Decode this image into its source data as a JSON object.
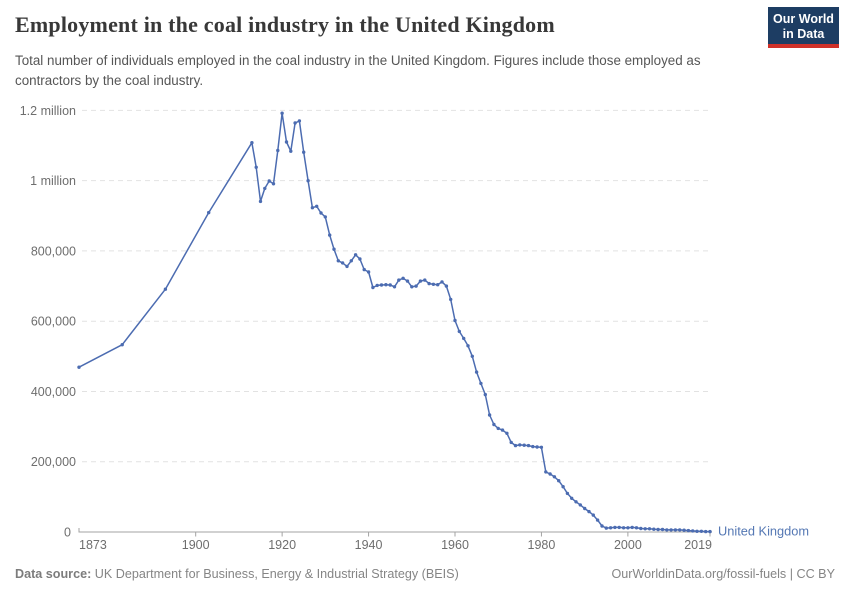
{
  "header": {
    "title": "Employment in the coal industry in the United Kingdom",
    "subtitle": "Total number of individuals employed in the coal industry in the United Kingdom. Figures include those employed as contractors by the coal industry.",
    "logo": {
      "line1": "Our World",
      "line2": "in Data",
      "bg_color": "#1d3d63",
      "accent_color": "#cf3129"
    }
  },
  "footer": {
    "source_label": "Data source:",
    "source_text": " UK Department for Business, Energy & Industrial Strategy (BEIS)",
    "right_text": "OurWorldinData.org/fossil-fuels | CC BY"
  },
  "chart_data": {
    "type": "line",
    "title": "Employment in the coal industry in the United Kingdom",
    "subtitle": "Total number of individuals employed in the coal industry in the United Kingdom. Figures include those employed as contractors by the coal industry.",
    "entity_label": "United Kingdom",
    "line_color": "#4c6cb1",
    "entity_label_color": "#5578b4",
    "grid_color": "#e2e2e2",
    "axis_color": "#a3a3a3",
    "tick_label_color": "#6e6e6e",
    "grid": "horizontal-dashed",
    "legend_position": "end-of-line",
    "x_range": [
      1873,
      2019
    ],
    "y_range": [
      0,
      1200000
    ],
    "x_ticks": [
      1873,
      1900,
      1920,
      1940,
      1960,
      1980,
      2000,
      2019
    ],
    "y_ticks": [
      {
        "value": 0,
        "label": "0"
      },
      {
        "value": 200000,
        "label": "200,000"
      },
      {
        "value": 400000,
        "label": "400,000"
      },
      {
        "value": 600000,
        "label": "600,000"
      },
      {
        "value": 800000,
        "label": "800,000"
      },
      {
        "value": 1000000,
        "label": "1 million"
      },
      {
        "value": 1200000,
        "label": "1.2 million"
      }
    ],
    "series": [
      {
        "name": "United Kingdom",
        "points": [
          [
            1873,
            469000
          ],
          [
            1883,
            533000
          ],
          [
            1893,
            691000
          ],
          [
            1903,
            909000
          ],
          [
            1913,
            1108000
          ],
          [
            1914,
            1038000
          ],
          [
            1915,
            941000
          ],
          [
            1916,
            978000
          ],
          [
            1917,
            999000
          ],
          [
            1918,
            991000
          ],
          [
            1919,
            1086000
          ],
          [
            1920,
            1192000
          ],
          [
            1921,
            1110000
          ],
          [
            1922,
            1084000
          ],
          [
            1923,
            1164000
          ],
          [
            1924,
            1170000
          ],
          [
            1925,
            1081000
          ],
          [
            1926,
            1000000
          ],
          [
            1927,
            923000
          ],
          [
            1928,
            927000
          ],
          [
            1929,
            908000
          ],
          [
            1930,
            897000
          ],
          [
            1931,
            845000
          ],
          [
            1932,
            805000
          ],
          [
            1933,
            772000
          ],
          [
            1934,
            766000
          ],
          [
            1935,
            756000
          ],
          [
            1936,
            772000
          ],
          [
            1937,
            789000
          ],
          [
            1938,
            777000
          ],
          [
            1939,
            747000
          ],
          [
            1940,
            740000
          ],
          [
            1941,
            696000
          ],
          [
            1942,
            702000
          ],
          [
            1943,
            703000
          ],
          [
            1944,
            704000
          ],
          [
            1945,
            703000
          ],
          [
            1946,
            698000
          ],
          [
            1947,
            717000
          ],
          [
            1948,
            722000
          ],
          [
            1949,
            714000
          ],
          [
            1950,
            698000
          ],
          [
            1951,
            700000
          ],
          [
            1952,
            714000
          ],
          [
            1953,
            717000
          ],
          [
            1954,
            707000
          ],
          [
            1955,
            705000
          ],
          [
            1956,
            704000
          ],
          [
            1957,
            712000
          ],
          [
            1958,
            700000
          ],
          [
            1959,
            662000
          ],
          [
            1960,
            602000
          ],
          [
            1961,
            571000
          ],
          [
            1962,
            551000
          ],
          [
            1963,
            530000
          ],
          [
            1964,
            500000
          ],
          [
            1965,
            455000
          ],
          [
            1966,
            423000
          ],
          [
            1967,
            391000
          ],
          [
            1968,
            333000
          ],
          [
            1969,
            306000
          ],
          [
            1970,
            295000
          ],
          [
            1971,
            290000
          ],
          [
            1972,
            281000
          ],
          [
            1973,
            255000
          ],
          [
            1974,
            246000
          ],
          [
            1975,
            248000
          ],
          [
            1976,
            247000
          ],
          [
            1977,
            246000
          ],
          [
            1978,
            243000
          ],
          [
            1979,
            242000
          ],
          [
            1980,
            241000
          ],
          [
            1981,
            171000
          ],
          [
            1982,
            165000
          ],
          [
            1983,
            157000
          ],
          [
            1984,
            146000
          ],
          [
            1985,
            129000
          ],
          [
            1986,
            110000
          ],
          [
            1987,
            96000
          ],
          [
            1988,
            86000
          ],
          [
            1989,
            77000
          ],
          [
            1990,
            67000
          ],
          [
            1991,
            58000
          ],
          [
            1992,
            48000
          ],
          [
            1993,
            34000
          ],
          [
            1994,
            17000
          ],
          [
            1995,
            11000
          ],
          [
            1996,
            12000
          ],
          [
            1997,
            13000
          ],
          [
            1998,
            13000
          ],
          [
            1999,
            12000
          ],
          [
            2000,
            12000
          ],
          [
            2001,
            13000
          ],
          [
            2002,
            12000
          ],
          [
            2003,
            10000
          ],
          [
            2004,
            9000
          ],
          [
            2005,
            9000
          ],
          [
            2006,
            8000
          ],
          [
            2007,
            7000
          ],
          [
            2008,
            7000
          ],
          [
            2009,
            6000
          ],
          [
            2010,
            6000
          ],
          [
            2011,
            6000
          ],
          [
            2012,
            6000
          ],
          [
            2013,
            5000
          ],
          [
            2014,
            4000
          ],
          [
            2015,
            3000
          ],
          [
            2016,
            2000
          ],
          [
            2017,
            2000
          ],
          [
            2018,
            1000
          ],
          [
            2019,
            1000
          ]
        ]
      }
    ]
  }
}
